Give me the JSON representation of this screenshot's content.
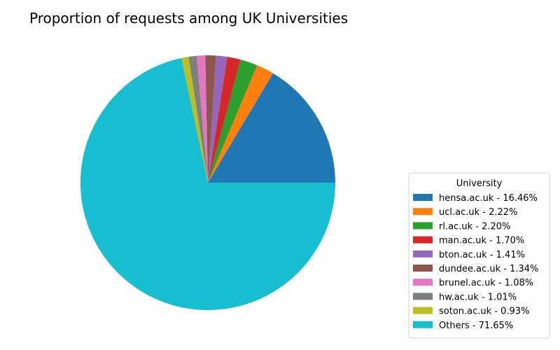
{
  "chart_data": {
    "type": "pie",
    "title": "Proportion of requests among UK Universities",
    "legend_title": "University",
    "legend_position": "bottom-right",
    "start_angle_deg": 0,
    "direction": "counterclockwise",
    "slices": [
      {
        "name": "hensa.ac.uk",
        "value": 16.46,
        "label": "hensa.ac.uk - 16.46%",
        "color": "#1f77b4"
      },
      {
        "name": "ucl.ac.uk",
        "value": 2.22,
        "label": "ucl.ac.uk - 2.22%",
        "color": "#ff7f0e"
      },
      {
        "name": "rl.ac.uk",
        "value": 2.2,
        "label": "rl.ac.uk - 2.20%",
        "color": "#2ca02c"
      },
      {
        "name": "man.ac.uk",
        "value": 1.7,
        "label": "man.ac.uk - 1.70%",
        "color": "#d62728"
      },
      {
        "name": "bton.ac.uk",
        "value": 1.41,
        "label": "bton.ac.uk - 1.41%",
        "color": "#9467bd"
      },
      {
        "name": "dundee.ac.uk",
        "value": 1.34,
        "label": "dundee.ac.uk - 1.34%",
        "color": "#8c564b"
      },
      {
        "name": "brunel.ac.uk",
        "value": 1.08,
        "label": "brunel.ac.uk - 1.08%",
        "color": "#e377c2"
      },
      {
        "name": "hw.ac.uk",
        "value": 1.01,
        "label": "hw.ac.uk - 1.01%",
        "color": "#7f7f7f"
      },
      {
        "name": "soton.ac.uk",
        "value": 0.93,
        "label": "soton.ac.uk - 0.93%",
        "color": "#bcbd22"
      },
      {
        "name": "Others",
        "value": 71.65,
        "label": "Others - 71.65%",
        "color": "#17becf"
      }
    ]
  }
}
